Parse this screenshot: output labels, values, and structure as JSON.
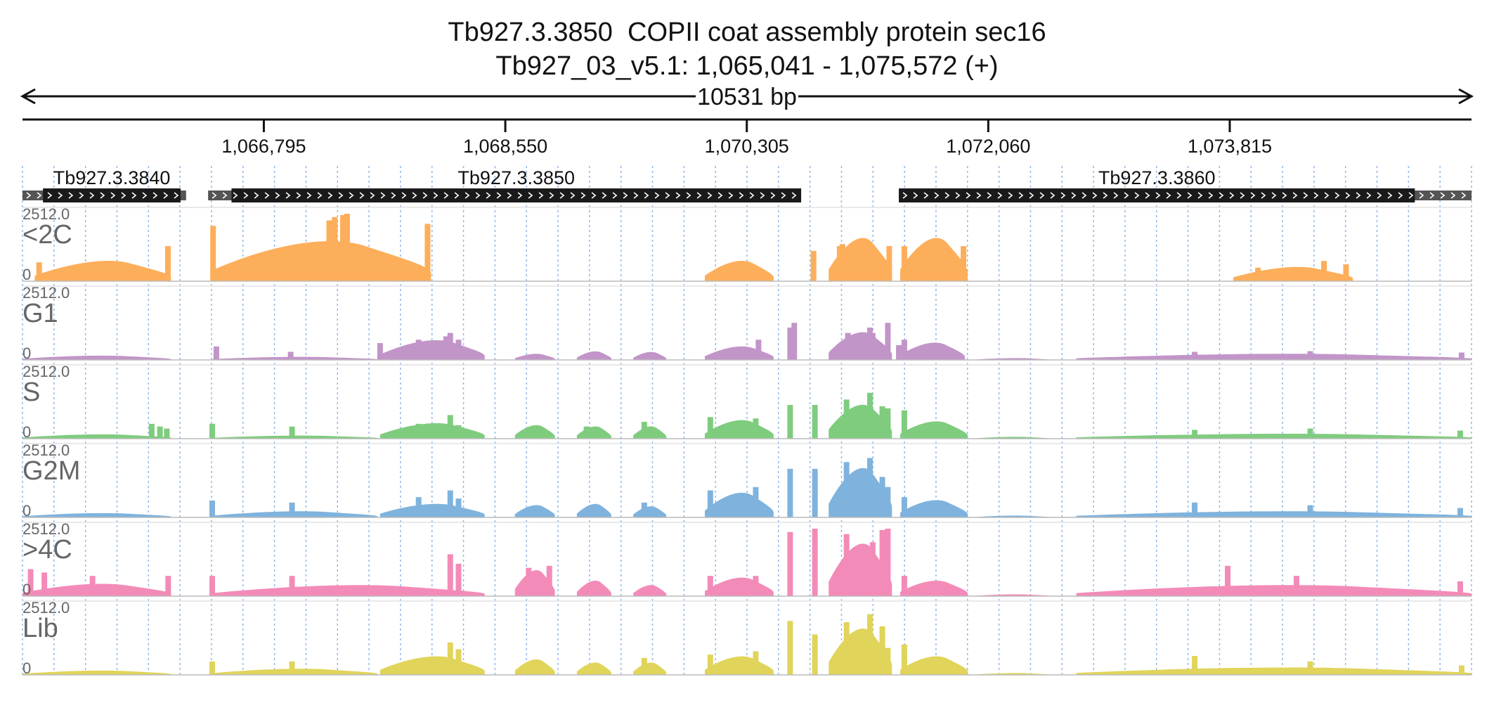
{
  "chart_data": {
    "type": "area",
    "title": "Tb927.3.3850  COPII coat assembly protein sec16",
    "subtitle": "Tb927_03_v5.1: 1,065,041 - 1,075,572 (+)",
    "span_label": "10531 bp",
    "region": {
      "start": 1065041,
      "end": 1075572
    },
    "x_ticks": [
      {
        "pos": 1066795,
        "label": "1,066,795"
      },
      {
        "pos": 1068550,
        "label": "1,068,550"
      },
      {
        "pos": 1070305,
        "label": "1,070,305"
      },
      {
        "pos": 1072060,
        "label": "1,072,060"
      },
      {
        "pos": 1073815,
        "label": "1,073,815"
      }
    ],
    "genes": [
      {
        "name": "Tb927.3.3840",
        "utr_start": 1065041,
        "cds_start": 1065190,
        "cds_end": 1066190,
        "utr_end": 1066230
      },
      {
        "name": "Tb927.3.3850",
        "utr_start": 1066390,
        "cds_start": 1066560,
        "cds_end": 1070700,
        "utr_end": 1070700
      },
      {
        "name": "Tb927.3.3860",
        "utr_start": 1071410,
        "cds_start": 1071410,
        "cds_end": 1075160,
        "utr_end": 1075572
      }
    ],
    "y_max_label": "2512.0",
    "y_min_label": "0",
    "y_range": [
      0,
      2512
    ],
    "tracks": [
      {
        "name": "<2C",
        "color": "#fdae5b",
        "segments": [
          [
            1065130,
            1066120,
            0.33
          ],
          [
            1066420,
            1068010,
            0.65
          ],
          [
            1070000,
            1070500,
            0.33
          ],
          [
            1070900,
            1071360,
            0.7
          ],
          [
            1071420,
            1071910,
            0.7
          ],
          [
            1073840,
            1074710,
            0.23
          ]
        ],
        "spikes": [
          [
            1065162,
            0.28
          ],
          [
            1066098,
            0.52
          ],
          [
            1066426,
            0.82
          ],
          [
            1067270,
            0.9
          ],
          [
            1067310,
            0.95
          ],
          [
            1067370,
            0.98
          ],
          [
            1067400,
            1.0
          ],
          [
            1067985,
            0.85
          ],
          [
            1070790,
            0.45
          ],
          [
            1070980,
            0.52
          ],
          [
            1071000,
            0.55
          ],
          [
            1071100,
            0.4
          ],
          [
            1071340,
            0.52
          ],
          [
            1071450,
            0.52
          ],
          [
            1071660,
            0.52
          ],
          [
            1071880,
            0.52
          ],
          [
            1074020,
            0.2
          ],
          [
            1074500,
            0.3
          ],
          [
            1074660,
            0.25
          ]
        ]
      },
      {
        "name": "G1",
        "color": "#c295c9",
        "segments": [
          [
            1065041,
            1066120,
            0.07
          ],
          [
            1066420,
            1067620,
            0.05
          ],
          [
            1067640,
            1068400,
            0.32
          ],
          [
            1068620,
            1068910,
            0.1
          ],
          [
            1069070,
            1069320,
            0.14
          ],
          [
            1069480,
            1069720,
            0.13
          ],
          [
            1070000,
            1070500,
            0.22
          ],
          [
            1070900,
            1071360,
            0.45
          ],
          [
            1071420,
            1071890,
            0.28
          ],
          [
            1071980,
            1072500,
            0.03
          ],
          [
            1072700,
            1075572,
            0.1
          ]
        ],
        "spikes": [
          [
            1066450,
            0.2
          ],
          [
            1066990,
            0.12
          ],
          [
            1067640,
            0.25
          ],
          [
            1067920,
            0.3
          ],
          [
            1068120,
            0.35
          ],
          [
            1068150,
            0.4
          ],
          [
            1068210,
            0.3
          ],
          [
            1070390,
            0.3
          ],
          [
            1070620,
            0.48
          ],
          [
            1070650,
            0.55
          ],
          [
            1071040,
            0.4
          ],
          [
            1071200,
            0.48
          ],
          [
            1071220,
            0.4
          ],
          [
            1071330,
            0.55
          ],
          [
            1071410,
            0.22
          ],
          [
            1071450,
            0.3
          ],
          [
            1073560,
            0.12
          ],
          [
            1074400,
            0.13
          ],
          [
            1075500,
            0.11
          ]
        ]
      },
      {
        "name": "S",
        "color": "#7fcc7f",
        "segments": [
          [
            1065041,
            1066120,
            0.07
          ],
          [
            1066420,
            1067620,
            0.05
          ],
          [
            1067640,
            1068400,
            0.25
          ],
          [
            1068620,
            1068910,
            0.22
          ],
          [
            1069070,
            1069320,
            0.2
          ],
          [
            1069480,
            1069720,
            0.2
          ],
          [
            1070000,
            1070500,
            0.3
          ],
          [
            1070900,
            1071360,
            0.55
          ],
          [
            1071420,
            1071910,
            0.28
          ],
          [
            1071980,
            1072500,
            0.03
          ],
          [
            1072700,
            1075572,
            0.08
          ]
        ],
        "spikes": [
          [
            1065980,
            0.22
          ],
          [
            1066040,
            0.18
          ],
          [
            1066090,
            0.15
          ],
          [
            1066420,
            0.22
          ],
          [
            1067000,
            0.18
          ],
          [
            1067920,
            0.22
          ],
          [
            1068150,
            0.35
          ],
          [
            1068210,
            0.2
          ],
          [
            1069140,
            0.18
          ],
          [
            1069560,
            0.25
          ],
          [
            1070040,
            0.32
          ],
          [
            1070370,
            0.3
          ],
          [
            1070620,
            0.5
          ],
          [
            1070800,
            0.5
          ],
          [
            1071030,
            0.58
          ],
          [
            1071200,
            0.68
          ],
          [
            1071290,
            0.48
          ],
          [
            1071330,
            0.45
          ],
          [
            1071450,
            0.42
          ],
          [
            1073560,
            0.13
          ],
          [
            1074400,
            0.15
          ],
          [
            1075490,
            0.12
          ]
        ]
      },
      {
        "name": "G2M",
        "color": "#7fb3dd",
        "segments": [
          [
            1065041,
            1066120,
            0.07
          ],
          [
            1066420,
            1067620,
            0.1
          ],
          [
            1067640,
            1068400,
            0.22
          ],
          [
            1068620,
            1068910,
            0.2
          ],
          [
            1069070,
            1069320,
            0.22
          ],
          [
            1069480,
            1069720,
            0.18
          ],
          [
            1070000,
            1070500,
            0.4
          ],
          [
            1070900,
            1071360,
            0.8
          ],
          [
            1071420,
            1071910,
            0.28
          ],
          [
            1071980,
            1072500,
            0.03
          ],
          [
            1072700,
            1075572,
            0.1
          ]
        ],
        "spikes": [
          [
            1066420,
            0.25
          ],
          [
            1067000,
            0.22
          ],
          [
            1067920,
            0.3
          ],
          [
            1068150,
            0.4
          ],
          [
            1068210,
            0.28
          ],
          [
            1069560,
            0.22
          ],
          [
            1070040,
            0.4
          ],
          [
            1070370,
            0.45
          ],
          [
            1070620,
            0.72
          ],
          [
            1070800,
            0.72
          ],
          [
            1071030,
            0.82
          ],
          [
            1071200,
            0.88
          ],
          [
            1071290,
            0.6
          ],
          [
            1071330,
            0.45
          ],
          [
            1071450,
            0.3
          ],
          [
            1073560,
            0.22
          ],
          [
            1074400,
            0.18
          ],
          [
            1075490,
            0.14
          ]
        ]
      },
      {
        "name": ">4C",
        "color": "#f38bb8",
        "segments": [
          [
            1065041,
            1066120,
            0.2
          ],
          [
            1066420,
            1068400,
            0.18
          ],
          [
            1068620,
            1068910,
            0.42
          ],
          [
            1069070,
            1069320,
            0.25
          ],
          [
            1069480,
            1069720,
            0.18
          ],
          [
            1070000,
            1070500,
            0.3
          ],
          [
            1070900,
            1071360,
            0.85
          ],
          [
            1071420,
            1071910,
            0.25
          ],
          [
            1071980,
            1072500,
            0.03
          ],
          [
            1072700,
            1075572,
            0.18
          ]
        ],
        "spikes": [
          [
            1065100,
            0.4
          ],
          [
            1065200,
            0.35
          ],
          [
            1065550,
            0.3
          ],
          [
            1066100,
            0.3
          ],
          [
            1066420,
            0.3
          ],
          [
            1067000,
            0.3
          ],
          [
            1068150,
            0.62
          ],
          [
            1068210,
            0.48
          ],
          [
            1068720,
            0.42
          ],
          [
            1068870,
            0.45
          ],
          [
            1070040,
            0.3
          ],
          [
            1070370,
            0.3
          ],
          [
            1070620,
            0.95
          ],
          [
            1070800,
            1.0
          ],
          [
            1071030,
            0.92
          ],
          [
            1071220,
            0.8
          ],
          [
            1071290,
            0.98
          ],
          [
            1071330,
            1.0
          ],
          [
            1071450,
            0.3
          ],
          [
            1073800,
            0.45
          ],
          [
            1074300,
            0.3
          ],
          [
            1075490,
            0.22
          ]
        ]
      },
      {
        "name": "Lib",
        "color": "#e0d45a",
        "segments": [
          [
            1065041,
            1066120,
            0.07
          ],
          [
            1066420,
            1067620,
            0.1
          ],
          [
            1067640,
            1068400,
            0.3
          ],
          [
            1068620,
            1068910,
            0.25
          ],
          [
            1069070,
            1069320,
            0.2
          ],
          [
            1069480,
            1069720,
            0.2
          ],
          [
            1070000,
            1070500,
            0.3
          ],
          [
            1070900,
            1071360,
            0.75
          ],
          [
            1071420,
            1071910,
            0.3
          ],
          [
            1071980,
            1072500,
            0.03
          ],
          [
            1072700,
            1075572,
            0.12
          ]
        ],
        "spikes": [
          [
            1066420,
            0.2
          ],
          [
            1067000,
            0.2
          ],
          [
            1068150,
            0.48
          ],
          [
            1068210,
            0.38
          ],
          [
            1069560,
            0.25
          ],
          [
            1070040,
            0.3
          ],
          [
            1070370,
            0.35
          ],
          [
            1070620,
            0.8
          ],
          [
            1070800,
            0.6
          ],
          [
            1071030,
            0.78
          ],
          [
            1071200,
            0.9
          ],
          [
            1071290,
            0.72
          ],
          [
            1071330,
            0.4
          ],
          [
            1071450,
            0.45
          ],
          [
            1073560,
            0.28
          ],
          [
            1074400,
            0.2
          ],
          [
            1075500,
            0.14
          ]
        ]
      }
    ],
    "grid": true
  }
}
